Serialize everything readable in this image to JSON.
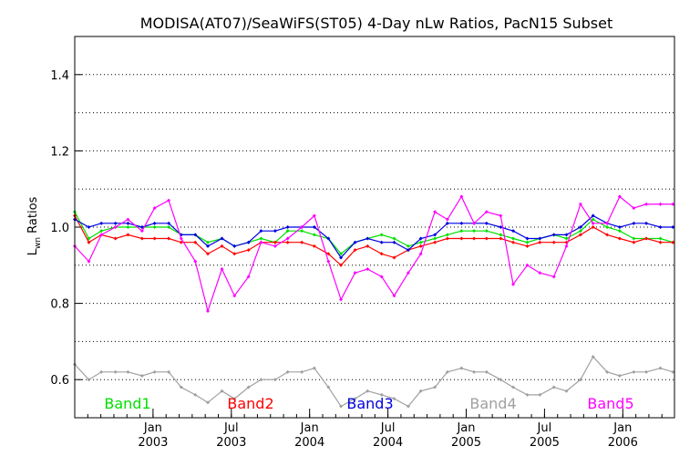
{
  "chart_data": {
    "type": "line",
    "title": "MODISA(AT07)/SeaWiFS(ST05) 4-Day nLw Ratios, PacN15 Subset",
    "ylabel_main": "L",
    "ylabel_sub": "wn",
    "ylabel_rest": " Ratios",
    "ylim": [
      0.5,
      1.5
    ],
    "yticks": [
      0.6,
      0.8,
      1.0,
      1.2,
      1.4
    ],
    "ytick_labels": [
      "0.6",
      "0.8",
      "1.0",
      "1.2",
      "1.4"
    ],
    "gridlines_y": [
      0.6,
      0.7,
      0.8,
      0.9,
      1.0,
      1.1,
      1.2,
      1.3,
      1.4
    ],
    "xlim": [
      2002.5,
      2006.33
    ],
    "xticks": [
      {
        "x": 2003.0,
        "month": "Jan",
        "year": "2003"
      },
      {
        "x": 2003.5,
        "month": "Jul",
        "year": "2003"
      },
      {
        "x": 2004.0,
        "month": "Jan",
        "year": "2004"
      },
      {
        "x": 2004.5,
        "month": "Jul",
        "year": "2004"
      },
      {
        "x": 2005.0,
        "month": "Jan",
        "year": "2005"
      },
      {
        "x": 2005.5,
        "month": "Jul",
        "year": "2005"
      },
      {
        "x": 2006.0,
        "month": "Jan",
        "year": "2006"
      }
    ],
    "x": [
      2002.5,
      2002.59,
      2002.67,
      2002.76,
      2002.84,
      2002.93,
      2003.01,
      2003.1,
      2003.18,
      2003.27,
      2003.35,
      2003.44,
      2003.52,
      2003.61,
      2003.69,
      2003.78,
      2003.86,
      2003.95,
      2004.03,
      2004.12,
      2004.2,
      2004.29,
      2004.37,
      2004.46,
      2004.54,
      2004.63,
      2004.71,
      2004.8,
      2004.88,
      2004.97,
      2005.05,
      2005.13,
      2005.22,
      2005.3,
      2005.39,
      2005.47,
      2005.56,
      2005.64,
      2005.73,
      2005.81,
      2005.9,
      2005.98,
      2006.07,
      2006.15,
      2006.24,
      2006.32
    ],
    "series": [
      {
        "name": "Band1",
        "color": "#00e000",
        "values": [
          1.04,
          0.97,
          0.99,
          1.0,
          1.0,
          1.0,
          1.0,
          1.0,
          0.98,
          0.98,
          0.96,
          0.97,
          0.95,
          0.96,
          0.97,
          0.96,
          0.99,
          0.99,
          0.98,
          0.97,
          0.93,
          0.96,
          0.97,
          0.98,
          0.97,
          0.95,
          0.96,
          0.97,
          0.98,
          0.99,
          0.99,
          0.99,
          0.98,
          0.97,
          0.96,
          0.97,
          0.98,
          0.97,
          0.99,
          1.02,
          1.0,
          0.99,
          0.97,
          0.97,
          0.97,
          0.96
        ]
      },
      {
        "name": "Band2",
        "color": "#ff0000",
        "values": [
          1.03,
          0.96,
          0.98,
          0.97,
          0.98,
          0.97,
          0.97,
          0.97,
          0.96,
          0.96,
          0.93,
          0.95,
          0.93,
          0.94,
          0.96,
          0.96,
          0.96,
          0.96,
          0.95,
          0.93,
          0.9,
          0.94,
          0.95,
          0.93,
          0.92,
          0.94,
          0.95,
          0.96,
          0.97,
          0.97,
          0.97,
          0.97,
          0.97,
          0.96,
          0.95,
          0.96,
          0.96,
          0.96,
          0.98,
          1.0,
          0.98,
          0.97,
          0.96,
          0.97,
          0.96,
          0.96
        ]
      },
      {
        "name": "Band3",
        "color": "#0000e0",
        "values": [
          1.02,
          1.0,
          1.01,
          1.01,
          1.01,
          1.0,
          1.01,
          1.01,
          0.98,
          0.98,
          0.95,
          0.97,
          0.95,
          0.96,
          0.99,
          0.99,
          1.0,
          1.0,
          1.0,
          0.97,
          0.92,
          0.96,
          0.97,
          0.96,
          0.96,
          0.94,
          0.97,
          0.98,
          1.01,
          1.01,
          1.01,
          1.01,
          1.0,
          0.99,
          0.97,
          0.97,
          0.98,
          0.98,
          1.0,
          1.03,
          1.01,
          1.0,
          1.01,
          1.01,
          1.0,
          1.0
        ]
      },
      {
        "name": "Band4",
        "color": "#a0a0a0",
        "values": [
          0.64,
          0.6,
          0.62,
          0.62,
          0.62,
          0.61,
          0.62,
          0.62,
          0.58,
          0.56,
          0.54,
          0.57,
          0.55,
          0.58,
          0.6,
          0.6,
          0.62,
          0.62,
          0.63,
          0.58,
          0.53,
          0.55,
          0.57,
          0.56,
          0.55,
          0.53,
          0.57,
          0.58,
          0.62,
          0.63,
          0.62,
          0.62,
          0.6,
          0.58,
          0.56,
          0.56,
          0.58,
          0.57,
          0.6,
          0.66,
          0.62,
          0.61,
          0.62,
          0.62,
          0.63,
          0.62
        ]
      },
      {
        "name": "Band5",
        "color": "#ff00ff",
        "values": [
          0.95,
          0.91,
          0.98,
          1.0,
          1.02,
          0.99,
          1.05,
          1.07,
          0.97,
          0.91,
          0.78,
          0.89,
          0.82,
          0.87,
          0.96,
          0.95,
          0.97,
          1.0,
          1.03,
          0.91,
          0.81,
          0.88,
          0.89,
          0.87,
          0.82,
          0.88,
          0.93,
          1.04,
          1.02,
          1.08,
          1.01,
          1.04,
          1.03,
          0.85,
          0.9,
          0.88,
          0.87,
          0.95,
          1.06,
          1.01,
          1.01,
          1.08,
          1.05,
          1.06,
          1.06,
          1.06
        ]
      }
    ],
    "legend": [
      "Band1",
      "Band2",
      "Band3",
      "Band4",
      "Band5"
    ],
    "grid": "horizontal dotted",
    "legend_placement": "bottom inside plot"
  }
}
